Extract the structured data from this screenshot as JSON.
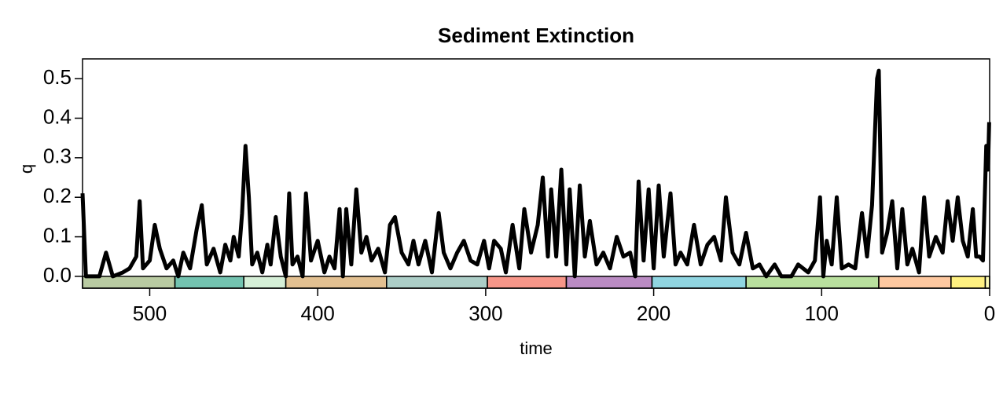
{
  "chart_data": {
    "type": "line",
    "title": "Sediment Extinction",
    "x_label": "time",
    "y_label": "q",
    "x": [
      540,
      538,
      530,
      526,
      522,
      516,
      512,
      508,
      506,
      504,
      500,
      497,
      494,
      490,
      486,
      483,
      480,
      476,
      472,
      469,
      466,
      462,
      458,
      455,
      452,
      450,
      447,
      445,
      443,
      441,
      439,
      436,
      433,
      430,
      428,
      425,
      422,
      419,
      417,
      415,
      412,
      409,
      407,
      404,
      400,
      396,
      393,
      390,
      387,
      385,
      383,
      380,
      377,
      374,
      371,
      368,
      364,
      360,
      357,
      354,
      350,
      346,
      343,
      340,
      336,
      332,
      328,
      325,
      321,
      317,
      313,
      309,
      305,
      301,
      298,
      295,
      291,
      288,
      284,
      280,
      277,
      273,
      269,
      266,
      263,
      261,
      258,
      255,
      252,
      250,
      247,
      244,
      241,
      238,
      234,
      230,
      226,
      222,
      218,
      214,
      211,
      209,
      206,
      203,
      200,
      197,
      194,
      190,
      187,
      184,
      180,
      176,
      172,
      168,
      164,
      160,
      157,
      153,
      149,
      145,
      141,
      137,
      133,
      128,
      124,
      118,
      114,
      108,
      104,
      101,
      99,
      97,
      94,
      91,
      88,
      84,
      80,
      76,
      73,
      70,
      67,
      66,
      64,
      61,
      58,
      55,
      52,
      49,
      46,
      42,
      39,
      36,
      32,
      28,
      25,
      22,
      19,
      16,
      13,
      10,
      8,
      6,
      4,
      2,
      1,
      0.3
    ],
    "series": [
      {
        "name": "q",
        "color": "#000000",
        "values": [
          0.21,
          0.0,
          0.0,
          0.06,
          0.0,
          0.01,
          0.02,
          0.05,
          0.19,
          0.02,
          0.04,
          0.13,
          0.07,
          0.02,
          0.04,
          0.0,
          0.06,
          0.02,
          0.12,
          0.18,
          0.03,
          0.07,
          0.01,
          0.08,
          0.04,
          0.1,
          0.05,
          0.16,
          0.33,
          0.2,
          0.03,
          0.06,
          0.01,
          0.08,
          0.03,
          0.15,
          0.05,
          0.0,
          0.21,
          0.03,
          0.05,
          0.0,
          0.21,
          0.04,
          0.09,
          0.01,
          0.05,
          0.02,
          0.17,
          0.0,
          0.17,
          0.03,
          0.22,
          0.06,
          0.1,
          0.04,
          0.07,
          0.01,
          0.13,
          0.15,
          0.06,
          0.03,
          0.09,
          0.03,
          0.09,
          0.01,
          0.16,
          0.06,
          0.02,
          0.06,
          0.09,
          0.04,
          0.03,
          0.09,
          0.02,
          0.09,
          0.07,
          0.01,
          0.13,
          0.02,
          0.17,
          0.06,
          0.13,
          0.25,
          0.05,
          0.22,
          0.05,
          0.27,
          0.03,
          0.22,
          0.0,
          0.23,
          0.05,
          0.14,
          0.03,
          0.06,
          0.02,
          0.1,
          0.05,
          0.06,
          0.0,
          0.24,
          0.04,
          0.22,
          0.02,
          0.23,
          0.05,
          0.21,
          0.03,
          0.06,
          0.03,
          0.13,
          0.03,
          0.08,
          0.1,
          0.04,
          0.2,
          0.06,
          0.03,
          0.11,
          0.02,
          0.03,
          0.0,
          0.03,
          0.0,
          0.0,
          0.03,
          0.01,
          0.04,
          0.2,
          0.0,
          0.09,
          0.03,
          0.2,
          0.02,
          0.03,
          0.02,
          0.16,
          0.05,
          0.18,
          0.5,
          0.52,
          0.06,
          0.11,
          0.19,
          0.02,
          0.17,
          0.03,
          0.07,
          0.01,
          0.2,
          0.05,
          0.1,
          0.06,
          0.19,
          0.09,
          0.2,
          0.09,
          0.05,
          0.17,
          0.05,
          0.05,
          0.04,
          0.33,
          0.27,
          0.39
        ]
      }
    ],
    "xlim": [
      540,
      0
    ],
    "ylim": [
      -0.03,
      0.55
    ],
    "xticks": [
      500,
      400,
      300,
      200,
      100,
      0
    ],
    "yticks": [
      {
        "value": 0,
        "label": "0.0"
      },
      {
        "value": 0.1,
        "label": "0.1"
      },
      {
        "value": 0.2,
        "label": "0.2"
      },
      {
        "value": 0.3,
        "label": "0.3"
      },
      {
        "value": 0.4,
        "label": "0.4"
      },
      {
        "value": 0.5,
        "label": "0.5"
      }
    ],
    "periods": [
      {
        "start": 540,
        "end": 485,
        "color": "#7FA056"
      },
      {
        "start": 485,
        "end": 444,
        "color": "#009270"
      },
      {
        "start": 444,
        "end": 419,
        "color": "#B3E1B6"
      },
      {
        "start": 419,
        "end": 359,
        "color": "#CB8C37"
      },
      {
        "start": 359,
        "end": 299,
        "color": "#67A599"
      },
      {
        "start": 299,
        "end": 252,
        "color": "#F04028"
      },
      {
        "start": 252,
        "end": 201,
        "color": "#812B92"
      },
      {
        "start": 201,
        "end": 145,
        "color": "#34B2C9"
      },
      {
        "start": 145,
        "end": 66,
        "color": "#7FC64E"
      },
      {
        "start": 66,
        "end": 23,
        "color": "#FD9A52"
      },
      {
        "start": 23,
        "end": 2.6,
        "color": "#FFE619"
      },
      {
        "start": 2.6,
        "end": 0,
        "color": "#F9F97F"
      }
    ]
  }
}
